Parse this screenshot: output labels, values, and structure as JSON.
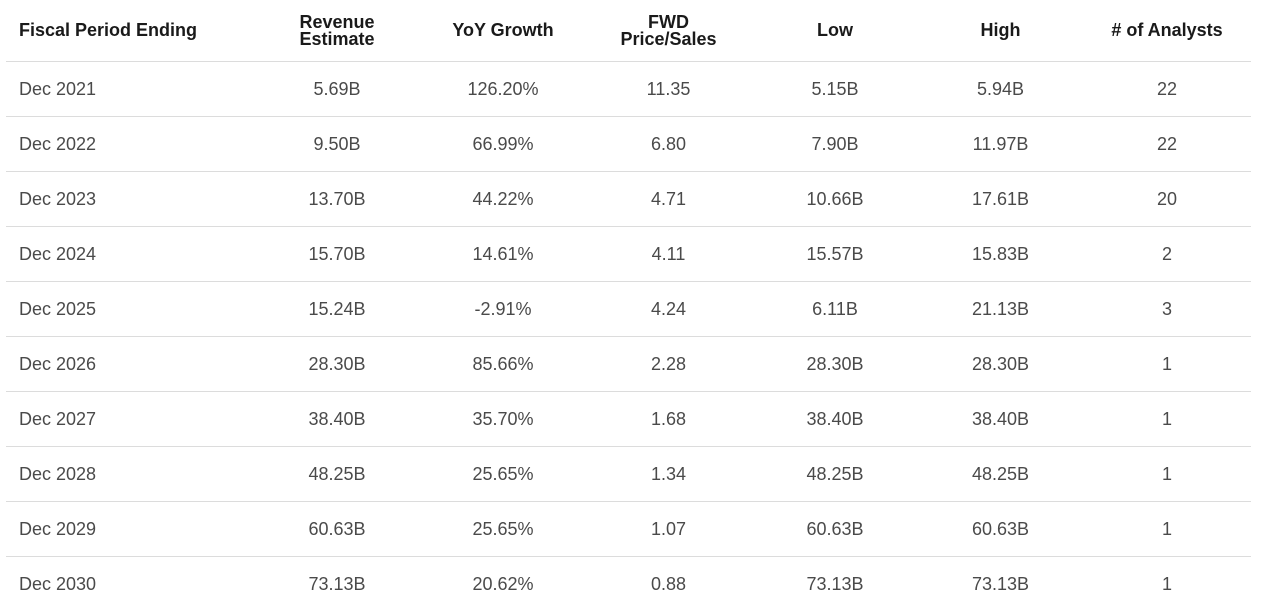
{
  "chart_data": {
    "type": "table",
    "columns": [
      [
        "Fiscal Period Ending"
      ],
      [
        "Revenue",
        "Estimate"
      ],
      [
        "YoY Growth"
      ],
      [
        "FWD",
        "Price/Sales"
      ],
      [
        "Low"
      ],
      [
        "High"
      ],
      [
        "# of Analysts"
      ]
    ],
    "rows": [
      [
        "Dec 2021",
        "5.69B",
        "126.20%",
        "11.35",
        "5.15B",
        "5.94B",
        "22"
      ],
      [
        "Dec 2022",
        "9.50B",
        "66.99%",
        "6.80",
        "7.90B",
        "11.97B",
        "22"
      ],
      [
        "Dec 2023",
        "13.70B",
        "44.22%",
        "4.71",
        "10.66B",
        "17.61B",
        "20"
      ],
      [
        "Dec 2024",
        "15.70B",
        "14.61%",
        "4.11",
        "15.57B",
        "15.83B",
        "2"
      ],
      [
        "Dec 2025",
        "15.24B",
        "-2.91%",
        "4.24",
        "6.11B",
        "21.13B",
        "3"
      ],
      [
        "Dec 2026",
        "28.30B",
        "85.66%",
        "2.28",
        "28.30B",
        "28.30B",
        "1"
      ],
      [
        "Dec 2027",
        "38.40B",
        "35.70%",
        "1.68",
        "38.40B",
        "38.40B",
        "1"
      ],
      [
        "Dec 2028",
        "48.25B",
        "25.65%",
        "1.34",
        "48.25B",
        "48.25B",
        "1"
      ],
      [
        "Dec 2029",
        "60.63B",
        "25.65%",
        "1.07",
        "60.63B",
        "60.63B",
        "1"
      ],
      [
        "Dec 2030",
        "73.13B",
        "20.62%",
        "0.88",
        "73.13B",
        "73.13B",
        "1"
      ]
    ]
  }
}
